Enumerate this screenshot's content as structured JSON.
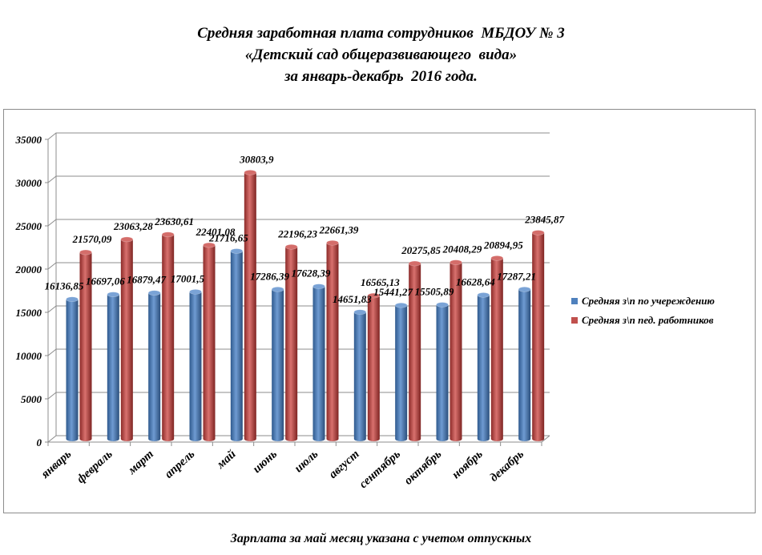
{
  "title_lines": [
    "Средняя заработная плата сотрудников  МБДОУ № 3",
    "«Детский сад общеразвивающего  вида»",
    "за январь-декабрь  2016 года."
  ],
  "footnote": "Зарплата за май месяц указана с учетом отпускных",
  "colors": {
    "series1": "#4f81bd",
    "series2": "#c0504d",
    "grid": "#8c8c8c",
    "text": "#000000"
  },
  "chart_data": {
    "type": "bar",
    "style": "3d-cylinder",
    "categories": [
      "январь",
      "февраль",
      "март",
      "апрель",
      "май",
      "июнь",
      "июль",
      "август",
      "сентябрь",
      "октябрь",
      "ноябрь",
      "декабрь"
    ],
    "series": [
      {
        "name": "Средняя з\\п по учереждению",
        "values": [
          16136.85,
          16697.06,
          16879.47,
          17001.5,
          21716.65,
          17286.39,
          17628.39,
          14651.83,
          15441.27,
          15505.89,
          16628.64,
          17287.21
        ],
        "labels": [
          "16136,85",
          "16697,06",
          "16879,47",
          "17001,5",
          "21716,65",
          "17286,39",
          "17628,39",
          "14651,83",
          "15441,27",
          "15505,89",
          "16628,64",
          "17287,21"
        ]
      },
      {
        "name": "Средняя з\\п пед. работников",
        "values": [
          21570.09,
          23063.28,
          23630.61,
          22401.08,
          30803.9,
          22196.23,
          22661.39,
          16565.13,
          20275.85,
          20408.29,
          20894.95,
          23845.87
        ],
        "labels": [
          "21570,09",
          "23063,28",
          "23630,61",
          "22401,08",
          "30803,9",
          "22196,23",
          "22661,39",
          "16565,13",
          "20275,85",
          "20408,29",
          "20894,95",
          "23845,87"
        ]
      }
    ],
    "ylim": [
      0,
      35000
    ],
    "yticks": [
      0,
      5000,
      10000,
      15000,
      20000,
      25000,
      30000,
      35000
    ],
    "grid": true,
    "legend_position": "right"
  }
}
